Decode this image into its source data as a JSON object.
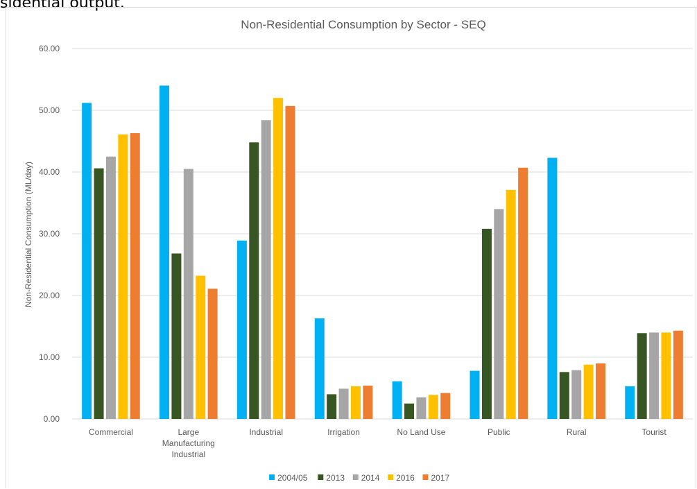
{
  "header": {
    "cutoff_text": "sidential output."
  },
  "chart_data": {
    "type": "bar",
    "title": "Non-Residential Consumption by Sector - SEQ",
    "xlabel": "",
    "ylabel": "Non-Residential Consumption (ML/day)",
    "ylim": [
      0,
      60
    ],
    "yticks": [
      "0.00",
      "10.00",
      "20.00",
      "30.00",
      "40.00",
      "50.00",
      "60.00"
    ],
    "grid": true,
    "legend_position": "bottom",
    "categories": [
      [
        "Commercial"
      ],
      [
        "Large",
        "Manufacturing",
        "Industrial"
      ],
      [
        "Industrial"
      ],
      [
        "Irrigation"
      ],
      [
        "No Land Use"
      ],
      [
        "Public"
      ],
      [
        "Rural"
      ],
      [
        "Tourist"
      ]
    ],
    "series": [
      {
        "name": "2004/05",
        "color": "#00b0f0",
        "values": [
          51.2,
          54.0,
          28.9,
          16.3,
          6.1,
          7.8,
          42.3,
          5.3
        ]
      },
      {
        "name": "2013",
        "color": "#375623",
        "values": [
          40.6,
          26.8,
          44.8,
          4.0,
          2.5,
          30.8,
          7.6,
          13.9
        ]
      },
      {
        "name": "2014",
        "color": "#a6a6a6",
        "values": [
          42.5,
          40.5,
          48.4,
          4.9,
          3.5,
          34.0,
          7.9,
          14.0
        ]
      },
      {
        "name": "2016",
        "color": "#ffc000",
        "values": [
          46.1,
          23.2,
          52.0,
          5.3,
          3.9,
          37.1,
          8.8,
          14.0
        ]
      },
      {
        "name": "2017",
        "color": "#ed7d31",
        "values": [
          46.3,
          21.1,
          50.7,
          5.4,
          4.2,
          40.7,
          9.0,
          14.3
        ]
      }
    ]
  }
}
